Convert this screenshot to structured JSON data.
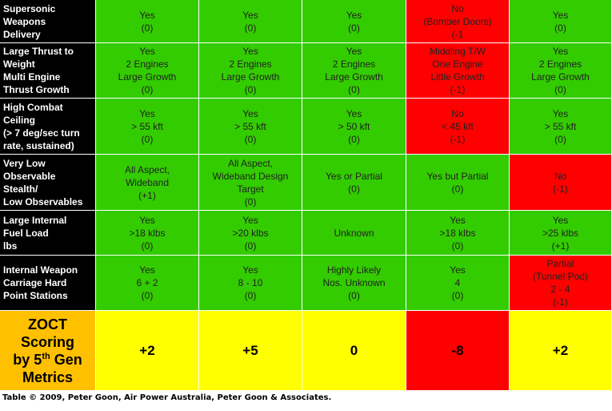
{
  "table": {
    "rows": [
      {
        "header": [
          "Supersonic",
          "Weapons",
          "Delivery"
        ],
        "header_color": "#000000",
        "cells": [
          {
            "lines": [
              "Yes",
              "(0)"
            ],
            "color": "#33cc00"
          },
          {
            "lines": [
              "Yes",
              "(0)"
            ],
            "color": "#33cc00"
          },
          {
            "lines": [
              "Yes",
              "(0)"
            ],
            "color": "#33cc00"
          },
          {
            "lines": [
              "No",
              "(Bomber Doors)",
              "(-1"
            ],
            "color": "#ff0000"
          },
          {
            "lines": [
              "Yes",
              "(0)"
            ],
            "color": "#33cc00"
          }
        ]
      },
      {
        "header": [
          "Large Thrust to",
          "Weight",
          "Multi Engine",
          "Thrust Growth"
        ],
        "header_color": "#000000",
        "cells": [
          {
            "lines": [
              "Yes",
              "2 Engines",
              "Large Growth",
              "(0)"
            ],
            "color": "#33cc00"
          },
          {
            "lines": [
              "Yes",
              "2 Engines",
              "Large Growth",
              "(0)"
            ],
            "color": "#33cc00"
          },
          {
            "lines": [
              "Yes",
              "2 Engines",
              "Large Growth",
              "(0)"
            ],
            "color": "#33cc00"
          },
          {
            "lines": [
              "Middling T/W",
              "One Engine",
              "Little Growth",
              "(-1)"
            ],
            "color": "#ff0000"
          },
          {
            "lines": [
              "Yes",
              "2 Engines",
              "Large Growth",
              "(0)"
            ],
            "color": "#33cc00"
          }
        ]
      },
      {
        "header": [
          "High Combat",
          "Ceiling",
          "(> 7 deg/sec turn",
          "rate, sustained)"
        ],
        "header_color": "#000000",
        "cells": [
          {
            "lines": [
              "Yes",
              "> 55 kft",
              "(0)"
            ],
            "color": "#33cc00"
          },
          {
            "lines": [
              "Yes",
              "> 55 kft",
              "(0)"
            ],
            "color": "#33cc00"
          },
          {
            "lines": [
              "Yes",
              "> 50 kft",
              "(0)"
            ],
            "color": "#33cc00"
          },
          {
            "lines": [
              "No",
              "< 45 kft",
              "(-1)"
            ],
            "color": "#ff0000"
          },
          {
            "lines": [
              "Yes",
              "> 55 kft",
              "(0)"
            ],
            "color": "#33cc00"
          }
        ]
      },
      {
        "header": [
          "Very Low",
          "Observable",
          "Stealth/",
          "Low Observables"
        ],
        "header_color": "#000000",
        "cells": [
          {
            "lines": [
              "All Aspect,",
              "Wideband",
              "(+1)"
            ],
            "color": "#33cc00"
          },
          {
            "lines": [
              "All Aspect,",
              "Wideband  Design",
              "Target",
              "(0)"
            ],
            "color": "#33cc00"
          },
          {
            "lines": [
              "Yes or Partial",
              "(0)"
            ],
            "color": "#33cc00"
          },
          {
            "lines": [
              "Yes but Partial",
              "(0)"
            ],
            "color": "#33cc00"
          },
          {
            "lines": [
              "No",
              "(-1)"
            ],
            "color": "#ff0000"
          }
        ]
      },
      {
        "header": [
          "Large Internal",
          "Fuel Load",
          "lbs"
        ],
        "header_color": "#000000",
        "cells": [
          {
            "lines": [
              "Yes",
              ">18 klbs",
              "(0)"
            ],
            "color": "#33cc00"
          },
          {
            "lines": [
              "Yes",
              ">20 klbs",
              "(0)"
            ],
            "color": "#33cc00"
          },
          {
            "lines": [
              "Unknown"
            ],
            "color": "#33cc00"
          },
          {
            "lines": [
              "Yes",
              ">18 klbs",
              "(0)"
            ],
            "color": "#33cc00"
          },
          {
            "lines": [
              "Yes",
              ">25 klbs",
              "(+1)"
            ],
            "color": "#33cc00"
          }
        ]
      },
      {
        "header": [
          "Internal Weapon",
          "Carriage Hard",
          "Point Stations"
        ],
        "header_color": "#000000",
        "cells": [
          {
            "lines": [
              "Yes",
              "6 + 2",
              "(0)"
            ],
            "color": "#33cc00"
          },
          {
            "lines": [
              "Yes",
              "8 - 10",
              "(0)"
            ],
            "color": "#33cc00"
          },
          {
            "lines": [
              "Highly Likely",
              "Nos. Unknown",
              "(0)"
            ],
            "color": "#33cc00"
          },
          {
            "lines": [
              "Yes",
              "4",
              "(0)"
            ],
            "color": "#33cc00"
          },
          {
            "lines": [
              "Partial",
              "(Tunnel Pod)",
              "2 - 4",
              "(-1)"
            ],
            "color": "#ff0000"
          }
        ]
      },
      {
        "header": [
          "ZOCT",
          "Scoring",
          [
            "by 5",
            "th",
            " Gen"
          ],
          "Metrics"
        ],
        "header_color": "#ffc000",
        "cells": [
          {
            "value": "+2",
            "color": "#ffff00"
          },
          {
            "value": "+5",
            "color": "#ffff00"
          },
          {
            "value": "0",
            "color": "#ffff00"
          },
          {
            "value": "-8",
            "color": "#ff0000"
          },
          {
            "value": "+2",
            "color": "#ffff00"
          }
        ]
      }
    ]
  },
  "footer": "Table © 2009, Peter Goon, Air Power Australia, Peter Goon & Associates."
}
